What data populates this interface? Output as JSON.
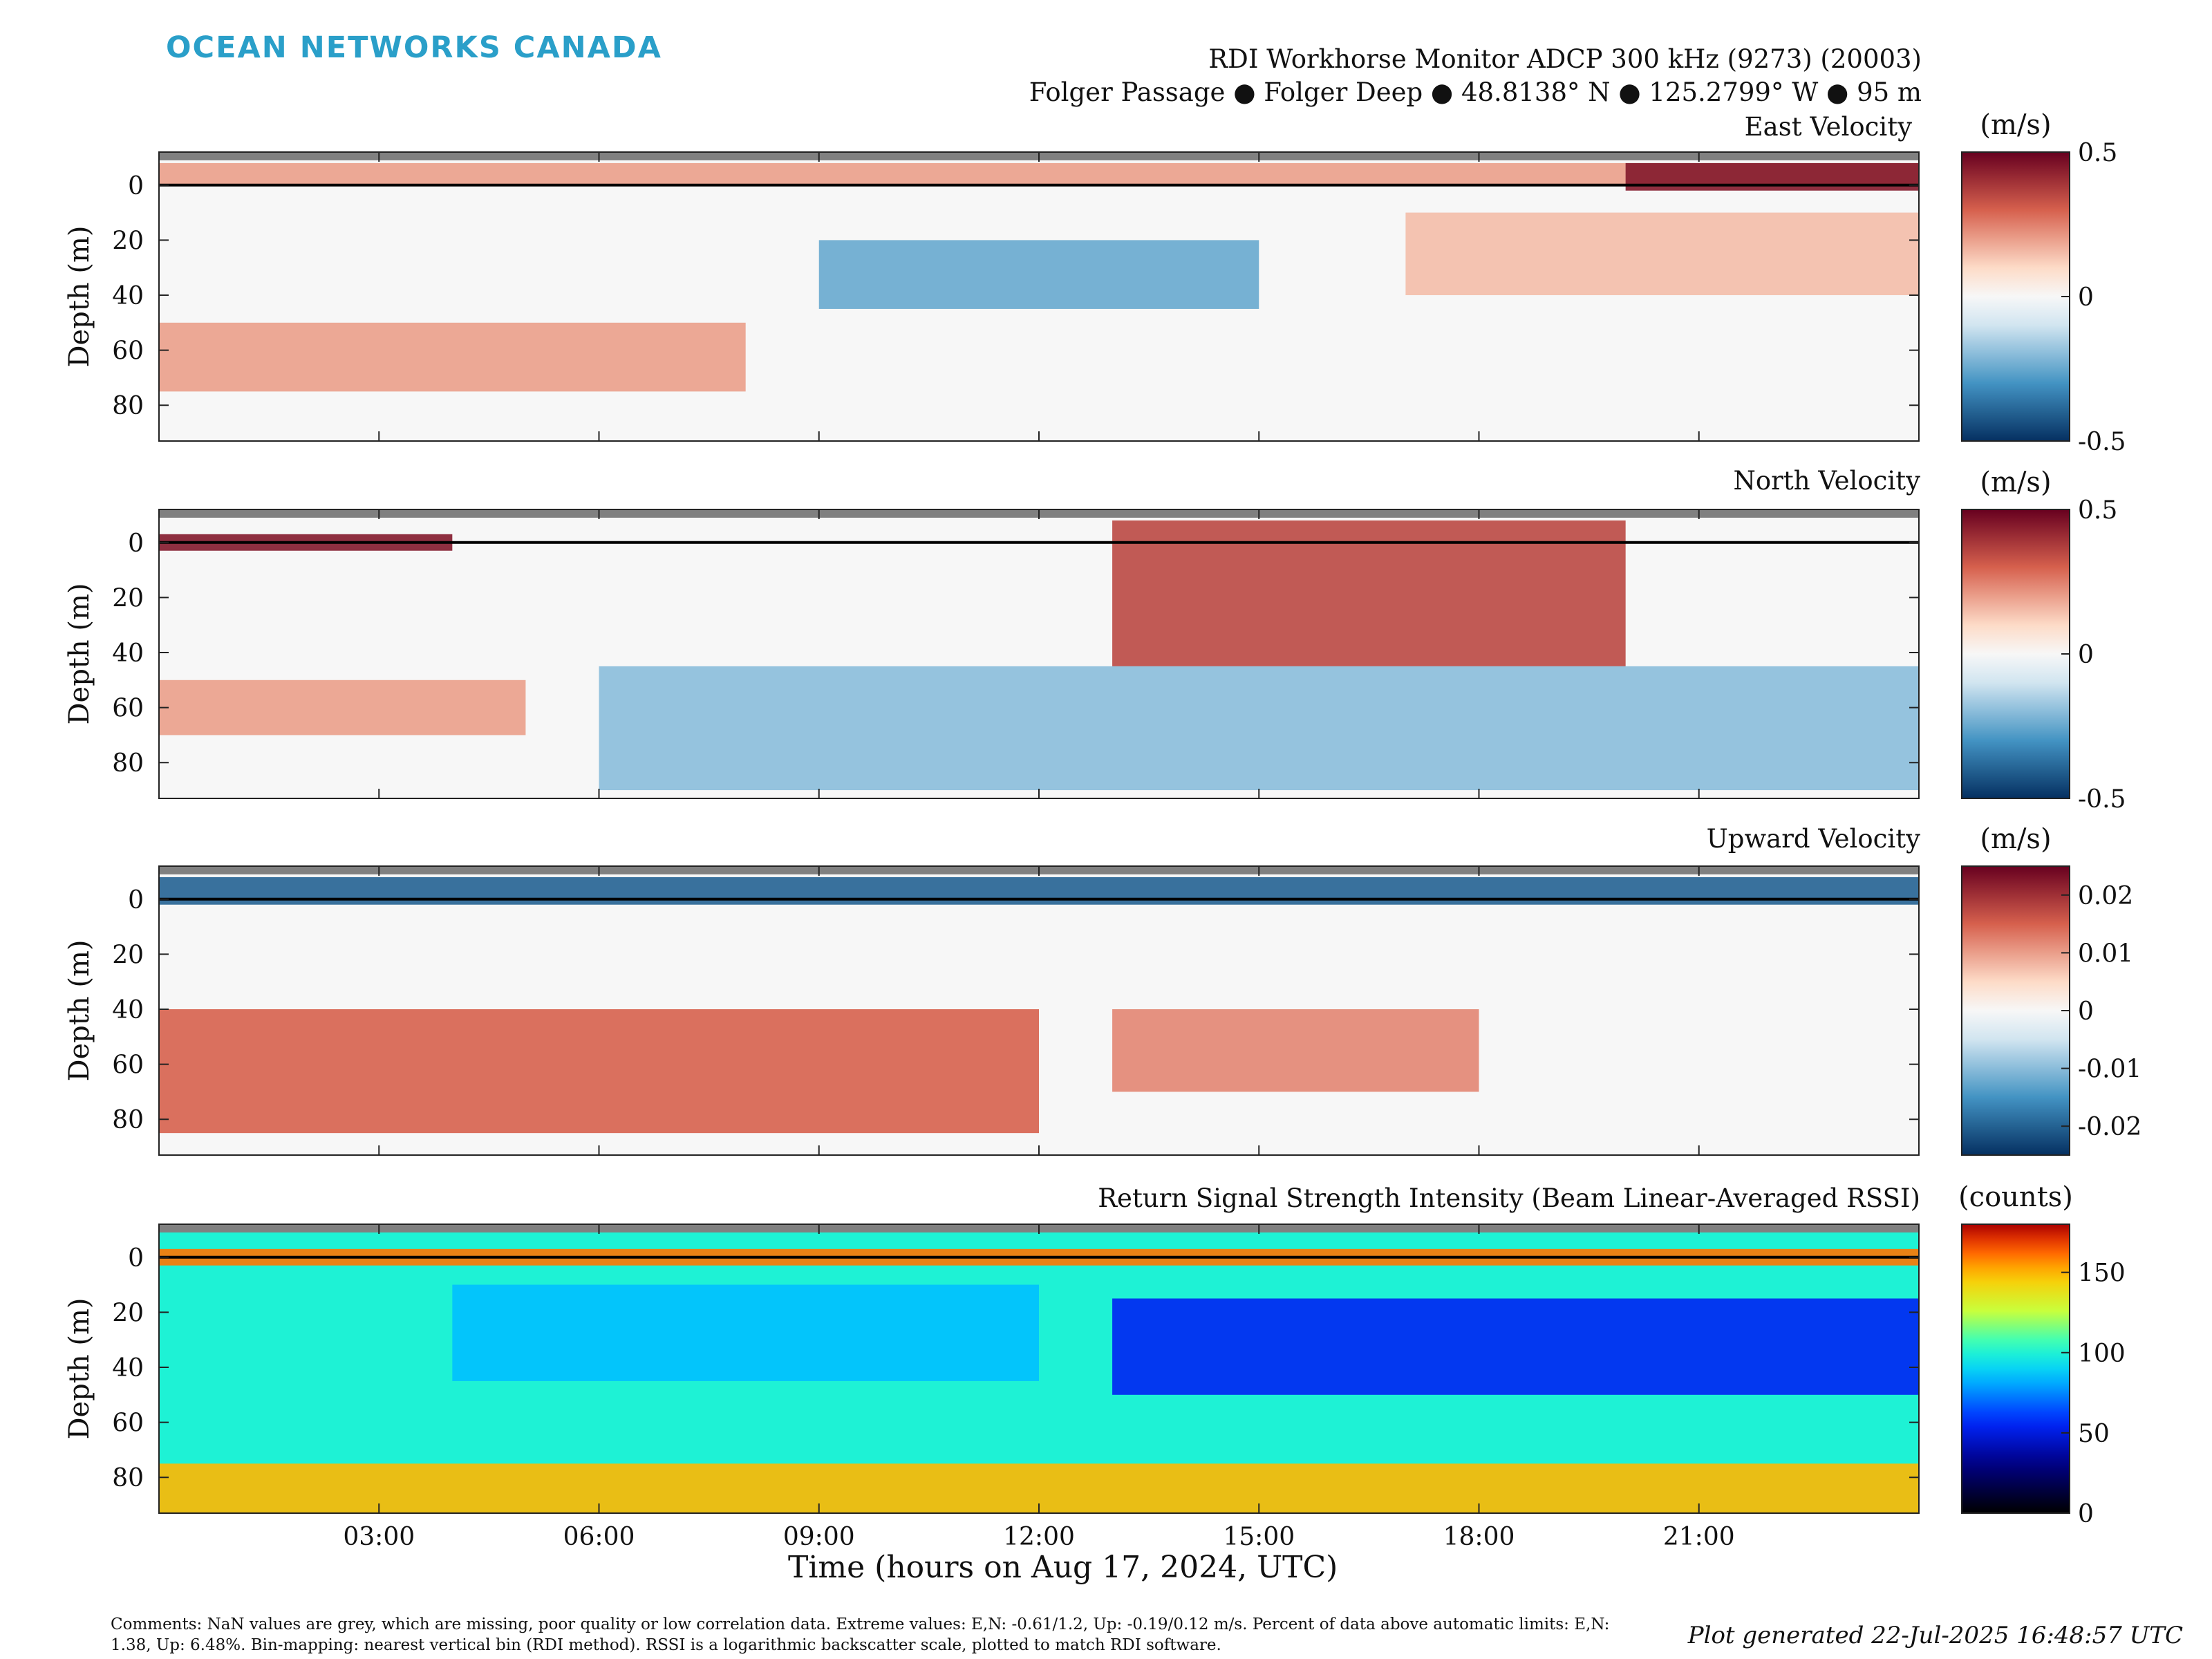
{
  "header": {
    "logo": "OCEAN NETWORKS CANADA",
    "title": "RDI Workhorse Monitor ADCP 300 kHz (9273) (20003)",
    "subtitle": "Folger Passage ● Folger Deep ● 48.8138° N ● 125.2799° W ● 95 m"
  },
  "chart_data": [
    {
      "type": "heatmap",
      "title": "East Velocity",
      "ylabel": "Depth (m)",
      "y_ticks": [
        0,
        20,
        40,
        60,
        80
      ],
      "ylim": [
        93,
        -12
      ],
      "colorbar": {
        "unit": "(m/s)",
        "ticks": [
          "0.5",
          "0",
          "-0.5"
        ],
        "colormap": "red-white-blue",
        "range": [
          -0.5,
          0.5
        ]
      },
      "bands": [
        {
          "depth": [
            -8,
            0
          ],
          "time": [
            0,
            24
          ],
          "value": 0.2
        },
        {
          "depth": [
            -8,
            2
          ],
          "time": [
            20,
            24
          ],
          "value": 0.45
        },
        {
          "depth": [
            20,
            45
          ],
          "time": [
            9,
            15
          ],
          "value": -0.25
        },
        {
          "depth": [
            50,
            75
          ],
          "time": [
            0,
            8
          ],
          "value": 0.2
        },
        {
          "depth": [
            10,
            40
          ],
          "time": [
            17,
            24
          ],
          "value": 0.15
        }
      ]
    },
    {
      "type": "heatmap",
      "title": "North Velocity",
      "ylabel": "Depth (m)",
      "y_ticks": [
        0,
        20,
        40,
        60,
        80
      ],
      "ylim": [
        93,
        -12
      ],
      "colorbar": {
        "unit": "(m/s)",
        "ticks": [
          "0.5",
          "0",
          "-0.5"
        ],
        "colormap": "red-white-blue",
        "range": [
          -0.5,
          0.5
        ]
      },
      "bands": [
        {
          "depth": [
            -3,
            3
          ],
          "time": [
            0,
            4
          ],
          "value": 0.45
        },
        {
          "depth": [
            -8,
            45
          ],
          "time": [
            13,
            20
          ],
          "value": 0.35
        },
        {
          "depth": [
            50,
            70
          ],
          "time": [
            0,
            5
          ],
          "value": 0.2
        },
        {
          "depth": [
            45,
            90
          ],
          "time": [
            6,
            24
          ],
          "value": -0.2
        }
      ]
    },
    {
      "type": "heatmap",
      "title": "Upward Velocity",
      "ylabel": "Depth (m)",
      "y_ticks": [
        0,
        20,
        40,
        60,
        80
      ],
      "ylim": [
        93,
        -12
      ],
      "colorbar": {
        "unit": "(m/s)",
        "ticks": [
          "0.02",
          "0.01",
          "0",
          "-0.01",
          "-0.02"
        ],
        "colormap": "red-white-blue",
        "range": [
          -0.025,
          0.025
        ]
      },
      "bands": [
        {
          "depth": [
            -8,
            2
          ],
          "time": [
            0,
            24
          ],
          "value": -0.02
        },
        {
          "depth": [
            40,
            85
          ],
          "time": [
            0,
            12
          ],
          "value": 0.015
        },
        {
          "depth": [
            40,
            70
          ],
          "time": [
            13,
            18
          ],
          "value": 0.012
        }
      ]
    },
    {
      "type": "heatmap",
      "title": "Return Signal Strength Intensity (Beam Linear-Averaged RSSI)",
      "ylabel": "Depth (m)",
      "y_ticks": [
        0,
        20,
        40,
        60,
        80
      ],
      "ylim": [
        93,
        -12
      ],
      "colorbar": {
        "unit": "(counts)",
        "ticks": [
          "150",
          "100",
          "50",
          "0"
        ],
        "colormap": "jet",
        "range": [
          0,
          180
        ]
      },
      "bands": [
        {
          "depth": [
            -3,
            3
          ],
          "time": [
            0,
            24
          ],
          "value": 160
        },
        {
          "depth": [
            10,
            45
          ],
          "time": [
            4,
            12
          ],
          "value": 85
        },
        {
          "depth": [
            15,
            50
          ],
          "time": [
            13,
            24
          ],
          "value": 55
        },
        {
          "depth": [
            75,
            93
          ],
          "time": [
            0,
            24
          ],
          "value": 150
        }
      ]
    }
  ],
  "x_axis": {
    "label": "Time (hours on Aug 17, 2024, UTC)",
    "xlim": [
      0,
      24
    ],
    "tick_hours": [
      3,
      6,
      9,
      12,
      15,
      18,
      21
    ],
    "tick_labels": [
      "03:00",
      "06:00",
      "09:00",
      "12:00",
      "15:00",
      "18:00",
      "21:00"
    ]
  },
  "footer": {
    "comments": "Comments: NaN values are grey, which are missing, poor quality or low correlation data. Extreme values: E,N: -0.61/1.2, Up: -0.19/0.12 m/s. Percent of data above automatic limits: E,N: 1.38, Up: 6.48%. Bin-mapping: nearest vertical bin (RDI method). RSSI is a logarithmic backscatter scale, plotted to match RDI software.",
    "generated": "Plot generated 22-Jul-2025 16:48:57 UTC"
  },
  "colors": {
    "logo": "#2a9fc9",
    "nan_grey": "#808080",
    "frame": "#222222"
  }
}
